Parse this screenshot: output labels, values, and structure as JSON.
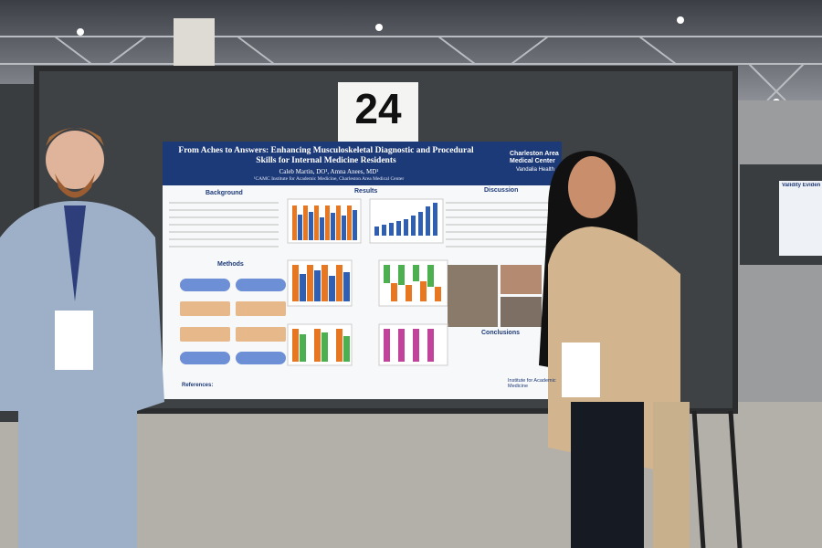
{
  "board_number": "24",
  "poster": {
    "title": "From Aches to Answers: Enhancing Musculoskeletal Diagnostic and Procedural Skills for Internal Medicine Residents",
    "authors": "Caleb Martin, DO¹, Amna Anees, MD¹",
    "affiliation": "¹CAMC Institute for Academic Medicine, Charleston Area Medical Center",
    "logo": {
      "name": "Charleston Area Medical Center",
      "parent": "Vandalia Health"
    },
    "sections": {
      "background": "Background",
      "results": "Results",
      "discussion": "Discussion",
      "methods": "Methods",
      "conclusions": "Conclusions",
      "references": "References:"
    },
    "footer_logo": "Institute for Academic Medicine"
  },
  "neighbor_poster": {
    "title": "Validity Eviden"
  }
}
